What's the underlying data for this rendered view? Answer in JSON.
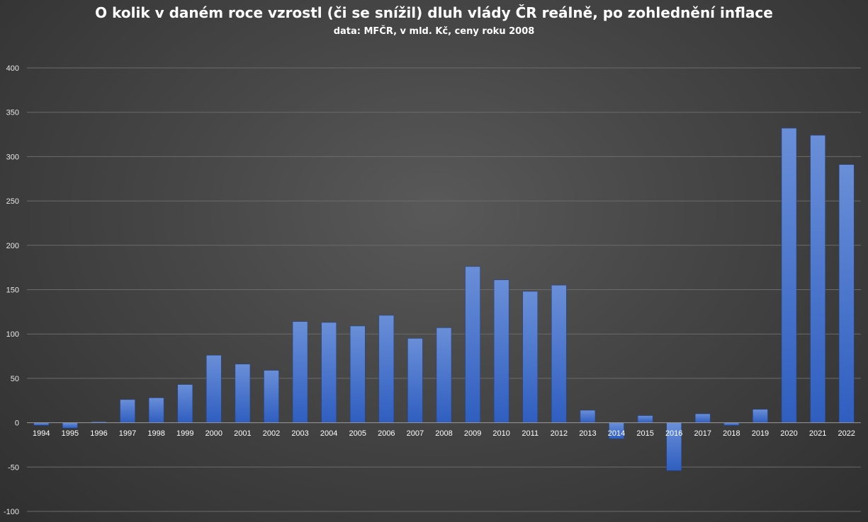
{
  "chart_data": {
    "type": "bar",
    "title": "O kolik v daném roce vzrostl (či se snížil) dluh vlády ČR reálně, po zohlednění inflace",
    "subtitle": "data: MFČR, v mld. Kč, ceny roku 2008",
    "xlabel": "",
    "ylabel": "",
    "ylim": [
      -100,
      400
    ],
    "yticks": [
      -100,
      -50,
      0,
      50,
      100,
      150,
      200,
      250,
      300,
      350,
      400
    ],
    "grid": true,
    "legend": "none",
    "categories": [
      "1994",
      "1995",
      "1996",
      "1997",
      "1998",
      "1999",
      "2000",
      "2001",
      "2002",
      "2003",
      "2004",
      "2005",
      "2006",
      "2007",
      "2008",
      "2009",
      "2010",
      "2011",
      "2012",
      "2013",
      "2014",
      "2015",
      "2016",
      "2017",
      "2018",
      "2019",
      "2020",
      "2021",
      "2022"
    ],
    "values": [
      -3,
      -6,
      1,
      26,
      28,
      43,
      76,
      66,
      59,
      114,
      113,
      109,
      121,
      95,
      107,
      176,
      161,
      148,
      155,
      14,
      -18,
      8,
      -54,
      10,
      -3,
      15,
      332,
      324,
      291
    ]
  },
  "colors": {
    "bar_top": "#6a8fd8",
    "bar_bottom": "#2f5ec0",
    "grid": "#6b6b6b",
    "axis": "#9a9a9a"
  }
}
